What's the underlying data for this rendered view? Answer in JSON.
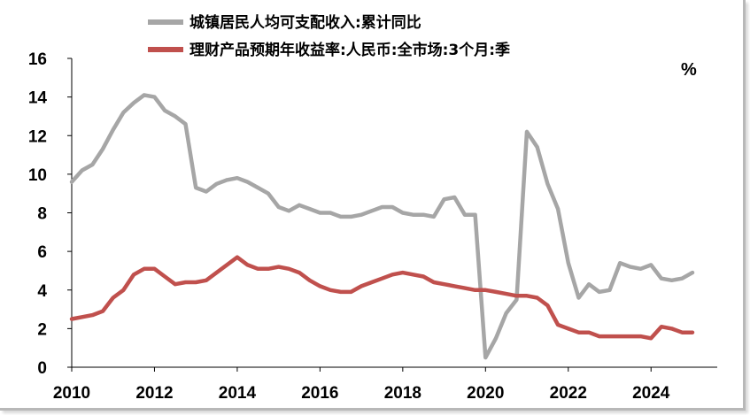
{
  "chart_data": {
    "type": "line",
    "title": "",
    "xlabel": "",
    "ylabel": "%",
    "xlim": [
      2010,
      2025.6
    ],
    "ylim": [
      0,
      16
    ],
    "x_ticks": [
      2010,
      2012,
      2014,
      2016,
      2018,
      2020,
      2022,
      2024
    ],
    "y_ticks": [
      0,
      2,
      4,
      6,
      8,
      10,
      12,
      14,
      16
    ],
    "grid": false,
    "legend_position": "top",
    "series": [
      {
        "name": "城镇居民人均可支配收入:累计同比",
        "color": "#a6a6a6",
        "x": [
          2010.0,
          2010.25,
          2010.5,
          2010.75,
          2011.0,
          2011.25,
          2011.5,
          2011.75,
          2012.0,
          2012.25,
          2012.5,
          2012.75,
          2013.0,
          2013.25,
          2013.5,
          2013.75,
          2014.0,
          2014.25,
          2014.5,
          2014.75,
          2015.0,
          2015.25,
          2015.5,
          2015.75,
          2016.0,
          2016.25,
          2016.5,
          2016.75,
          2017.0,
          2017.25,
          2017.5,
          2017.75,
          2018.0,
          2018.25,
          2018.5,
          2018.75,
          2019.0,
          2019.25,
          2019.5,
          2019.75,
          2020.0,
          2020.25,
          2020.5,
          2020.75,
          2021.0,
          2021.25,
          2021.5,
          2021.75,
          2022.0,
          2022.25,
          2022.5,
          2022.75,
          2023.0,
          2023.25,
          2023.5,
          2023.75,
          2024.0,
          2024.25,
          2024.5,
          2024.75,
          2025.0
        ],
        "values": [
          9.6,
          10.2,
          10.5,
          11.3,
          12.3,
          13.2,
          13.7,
          14.1,
          14.0,
          13.3,
          13.0,
          12.6,
          9.3,
          9.1,
          9.5,
          9.7,
          9.8,
          9.6,
          9.3,
          9.0,
          8.3,
          8.1,
          8.4,
          8.2,
          8.0,
          8.0,
          7.8,
          7.8,
          7.9,
          8.1,
          8.3,
          8.3,
          8.0,
          7.9,
          7.9,
          7.8,
          8.7,
          8.8,
          7.9,
          7.9,
          0.5,
          1.5,
          2.8,
          3.5,
          12.2,
          11.4,
          9.5,
          8.2,
          5.4,
          3.6,
          4.3,
          3.9,
          4.0,
          5.4,
          5.2,
          5.1,
          5.3,
          4.6,
          4.5,
          4.6,
          4.9
        ]
      },
      {
        "name": "理财产品预期年收益率:人民币:全市场:3个月:季",
        "color": "#c0504d",
        "x": [
          2010.0,
          2010.25,
          2010.5,
          2010.75,
          2011.0,
          2011.25,
          2011.5,
          2011.75,
          2012.0,
          2012.25,
          2012.5,
          2012.75,
          2013.0,
          2013.25,
          2013.5,
          2013.75,
          2014.0,
          2014.25,
          2014.5,
          2014.75,
          2015.0,
          2015.25,
          2015.5,
          2015.75,
          2016.0,
          2016.25,
          2016.5,
          2016.75,
          2017.0,
          2017.25,
          2017.5,
          2017.75,
          2018.0,
          2018.25,
          2018.5,
          2018.75,
          2019.0,
          2019.25,
          2019.5,
          2019.75,
          2020.0,
          2020.25,
          2020.5,
          2020.75,
          2021.0,
          2021.25,
          2021.5,
          2021.75,
          2022.0,
          2022.25,
          2022.5,
          2022.75,
          2023.0,
          2023.25,
          2023.5,
          2023.75,
          2024.0,
          2024.25,
          2024.5,
          2024.75,
          2025.0
        ],
        "values": [
          2.5,
          2.6,
          2.7,
          2.9,
          3.6,
          4.0,
          4.8,
          5.1,
          5.1,
          4.7,
          4.3,
          4.4,
          4.4,
          4.5,
          4.9,
          5.3,
          5.7,
          5.3,
          5.1,
          5.1,
          5.2,
          5.1,
          4.9,
          4.5,
          4.2,
          4.0,
          3.9,
          3.9,
          4.2,
          4.4,
          4.6,
          4.8,
          4.9,
          4.8,
          4.7,
          4.4,
          4.3,
          4.2,
          4.1,
          4.0,
          4.0,
          3.9,
          3.8,
          3.7,
          3.7,
          3.6,
          3.2,
          2.2,
          2.0,
          1.8,
          1.8,
          1.6,
          1.6,
          1.6,
          1.6,
          1.6,
          1.5,
          2.1,
          2.0,
          1.8,
          1.8
        ]
      }
    ]
  }
}
